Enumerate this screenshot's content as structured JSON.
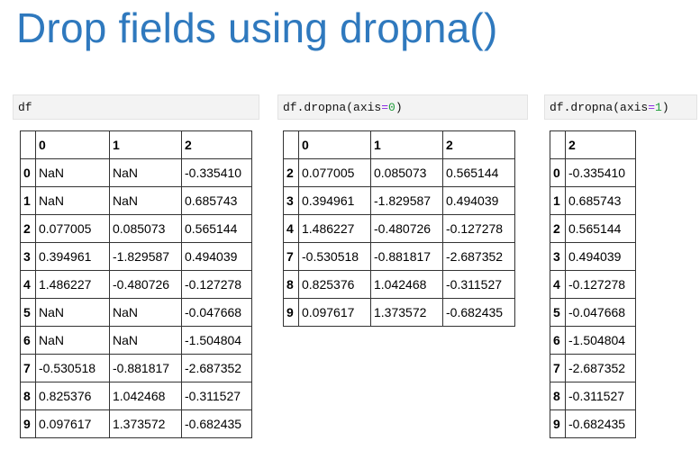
{
  "title": "Drop fields using dropna()",
  "panels": [
    {
      "code_prefix": "df",
      "code_eq": "",
      "code_num": "",
      "code_suffix": "",
      "columns": [
        "0",
        "1",
        "2"
      ],
      "rows": [
        {
          "index": "0",
          "cells": [
            "NaN",
            "NaN",
            "-0.335410"
          ]
        },
        {
          "index": "1",
          "cells": [
            "NaN",
            "NaN",
            "0.685743"
          ]
        },
        {
          "index": "2",
          "cells": [
            "0.077005",
            "0.085073",
            "0.565144"
          ]
        },
        {
          "index": "3",
          "cells": [
            "0.394961",
            "-1.829587",
            "0.494039"
          ]
        },
        {
          "index": "4",
          "cells": [
            "1.486227",
            "-0.480726",
            "-0.127278"
          ]
        },
        {
          "index": "5",
          "cells": [
            "NaN",
            "NaN",
            "-0.047668"
          ]
        },
        {
          "index": "6",
          "cells": [
            "NaN",
            "NaN",
            "-1.504804"
          ]
        },
        {
          "index": "7",
          "cells": [
            "-0.530518",
            "-0.881817",
            "-2.687352"
          ]
        },
        {
          "index": "8",
          "cells": [
            "0.825376",
            "1.042468",
            "-0.311527"
          ]
        },
        {
          "index": "9",
          "cells": [
            "0.097617",
            "1.373572",
            "-0.682435"
          ]
        }
      ]
    },
    {
      "code_prefix": "df.dropna(axis",
      "code_eq": "=",
      "code_num": "0",
      "code_suffix": ")",
      "columns": [
        "0",
        "1",
        "2"
      ],
      "rows": [
        {
          "index": "2",
          "cells": [
            "0.077005",
            "0.085073",
            "0.565144"
          ]
        },
        {
          "index": "3",
          "cells": [
            "0.394961",
            "-1.829587",
            "0.494039"
          ]
        },
        {
          "index": "4",
          "cells": [
            "1.486227",
            "-0.480726",
            "-0.127278"
          ]
        },
        {
          "index": "7",
          "cells": [
            "-0.530518",
            "-0.881817",
            "-2.687352"
          ]
        },
        {
          "index": "8",
          "cells": [
            "0.825376",
            "1.042468",
            "-0.311527"
          ]
        },
        {
          "index": "9",
          "cells": [
            "0.097617",
            "1.373572",
            "-0.682435"
          ]
        }
      ]
    },
    {
      "code_prefix": "df.dropna(axis",
      "code_eq": "=",
      "code_num": "1",
      "code_suffix": ")",
      "columns": [
        "2"
      ],
      "rows": [
        {
          "index": "0",
          "cells": [
            "-0.335410"
          ]
        },
        {
          "index": "1",
          "cells": [
            "0.685743"
          ]
        },
        {
          "index": "2",
          "cells": [
            "0.565144"
          ]
        },
        {
          "index": "3",
          "cells": [
            "0.494039"
          ]
        },
        {
          "index": "4",
          "cells": [
            "-0.127278"
          ]
        },
        {
          "index": "5",
          "cells": [
            "-0.047668"
          ]
        },
        {
          "index": "6",
          "cells": [
            "-1.504804"
          ]
        },
        {
          "index": "7",
          "cells": [
            "-2.687352"
          ]
        },
        {
          "index": "8",
          "cells": [
            "-0.311527"
          ]
        },
        {
          "index": "9",
          "cells": [
            "-0.682435"
          ]
        }
      ]
    }
  ]
}
